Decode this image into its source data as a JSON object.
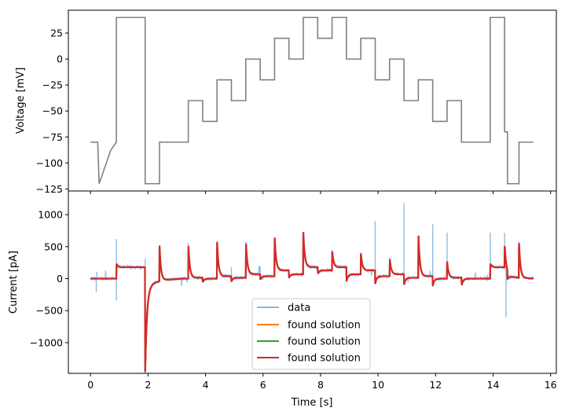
{
  "chart_data": [
    {
      "type": "line",
      "panel": "top",
      "ylabel": "Voltage [mV]",
      "xlabel": "",
      "xlim": [
        -0.77,
        16.2
      ],
      "ylim": [
        -127,
        47
      ],
      "yticks": [
        25,
        0,
        -25,
        -50,
        -75,
        -100,
        -125
      ],
      "ytick_labels": [
        "25",
        "0",
        "−25",
        "−50",
        "−75",
        "−100",
        "−125"
      ],
      "grid": false,
      "series": [
        {
          "name": "",
          "color": "#808080",
          "x": [
            0.0,
            0.25,
            0.25,
            0.3,
            0.7,
            0.9,
            0.9,
            1.9,
            1.9,
            2.4,
            2.4,
            3.4,
            3.4,
            3.9,
            3.9,
            4.4,
            4.4,
            4.9,
            4.9,
            5.4,
            5.4,
            5.9,
            5.9,
            6.4,
            6.4,
            6.9,
            6.9,
            7.4,
            7.4,
            7.9,
            7.9,
            8.4,
            8.4,
            8.9,
            8.9,
            9.4,
            9.4,
            9.9,
            9.9,
            10.4,
            10.4,
            10.9,
            10.9,
            11.4,
            11.4,
            11.9,
            11.9,
            12.4,
            12.4,
            12.9,
            12.9,
            13.9,
            13.9,
            14.4,
            14.4,
            14.5,
            14.5,
            14.9,
            14.9,
            15.4
          ],
          "y": [
            -80,
            -80,
            -80,
            -120,
            -88,
            -80,
            40,
            40,
            -120,
            -120,
            -80,
            -80,
            -40,
            -40,
            -60,
            -60,
            -20,
            -20,
            -40,
            -40,
            0,
            0,
            -20,
            -20,
            20,
            20,
            0,
            0,
            40,
            40,
            20,
            20,
            40,
            40,
            0,
            0,
            20,
            20,
            -20,
            -20,
            0,
            0,
            -40,
            -40,
            -20,
            -20,
            -60,
            -60,
            -40,
            -40,
            -80,
            -80,
            40,
            40,
            -70,
            -70,
            -120,
            -120,
            -80,
            -80
          ]
        }
      ]
    },
    {
      "type": "line",
      "panel": "bottom",
      "ylabel": "Current [pA]",
      "xlabel": "Time [s]",
      "xlim": [
        -0.77,
        16.2
      ],
      "ylim": [
        -1480,
        1370
      ],
      "xticks": [
        0,
        2,
        4,
        6,
        8,
        10,
        12,
        14,
        16
      ],
      "xtick_labels": [
        "0",
        "2",
        "4",
        "6",
        "8",
        "10",
        "12",
        "14",
        "16"
      ],
      "yticks": [
        1000,
        500,
        0,
        -500,
        -1000
      ],
      "ytick_labels": [
        "1000",
        "500",
        "0",
        "−500",
        "−1000"
      ],
      "grid": false,
      "legend": {
        "position": "lower-center",
        "entries": [
          "data",
          "found solution",
          "found solution",
          "found solution"
        ]
      },
      "series": [
        {
          "name": "data",
          "color": "#89b8dc"
        },
        {
          "name": "found solution",
          "color": "#ff7f0e"
        },
        {
          "name": "found solution",
          "color": "#2ca02c"
        },
        {
          "name": "found solution",
          "color": "#d62728"
        }
      ]
    }
  ]
}
